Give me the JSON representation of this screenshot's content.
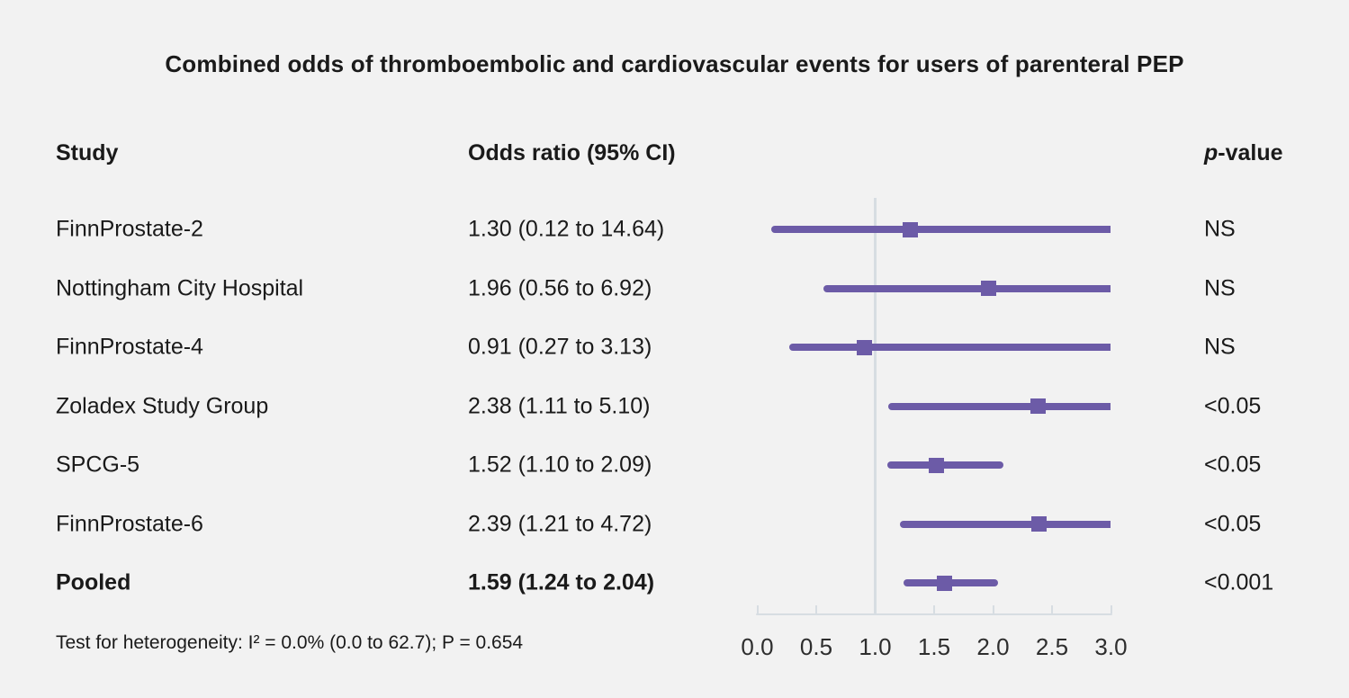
{
  "title": "Combined odds of thromboembolic and cardiovascular events for users of parenteral PEP",
  "columns": {
    "study": "Study",
    "odds_ratio": "Odds ratio (95% CI)",
    "p_value_italic": "p",
    "p_value_rest": "-value"
  },
  "colors": {
    "marker_purple": "#6c5ba7",
    "axis_gray": "#d7dde2",
    "background": "#f2f2f2",
    "text": "#1a1a1a"
  },
  "chart_data": {
    "type": "forest",
    "title": "Combined odds of thromboembolic and cardiovascular events for users of parenteral PEP",
    "xlim": [
      0.0,
      3.0
    ],
    "reference_line": 1.0,
    "tick_values": [
      0.0,
      0.5,
      1.0,
      1.5,
      2.0,
      2.5,
      3.0
    ],
    "tick_labels": [
      "0.0",
      "0.5",
      "1.0",
      "1.5",
      "2.0",
      "2.5",
      "3.0"
    ],
    "legend_position": "none",
    "grid": "reference-line-only",
    "rows": [
      {
        "study": "FinnProstate-2",
        "or": 1.3,
        "ci_low": 0.12,
        "ci_high": 14.64,
        "or_label": "1.30 (0.12 to 14.64)",
        "p": "NS",
        "bold": false
      },
      {
        "study": "Nottingham City Hospital",
        "or": 1.96,
        "ci_low": 0.56,
        "ci_high": 6.92,
        "or_label": "1.96 (0.56 to 6.92)",
        "p": "NS",
        "bold": false
      },
      {
        "study": "FinnProstate-4",
        "or": 0.91,
        "ci_low": 0.27,
        "ci_high": 3.13,
        "or_label": "0.91 (0.27 to 3.13)",
        "p": "NS",
        "bold": false
      },
      {
        "study": "Zoladex Study Group",
        "or": 2.38,
        "ci_low": 1.11,
        "ci_high": 5.1,
        "or_label": "2.38 (1.11 to 5.10)",
        "p": "<0.05",
        "bold": false
      },
      {
        "study": "SPCG-5",
        "or": 1.52,
        "ci_low": 1.1,
        "ci_high": 2.09,
        "or_label": "1.52 (1.10 to 2.09)",
        "p": "<0.05",
        "bold": false
      },
      {
        "study": "FinnProstate-6",
        "or": 2.39,
        "ci_low": 1.21,
        "ci_high": 4.72,
        "or_label": "2.39 (1.21 to 4.72)",
        "p": "<0.05",
        "bold": false
      },
      {
        "study": "Pooled",
        "or": 1.59,
        "ci_low": 1.24,
        "ci_high": 2.04,
        "or_label": "1.59 (1.24 to 2.04)",
        "p": "<0.001",
        "bold": true
      }
    ],
    "heterogeneity": "Test for heterogeneity: I² = 0.0% (0.0 to 62.7); P = 0.654"
  }
}
